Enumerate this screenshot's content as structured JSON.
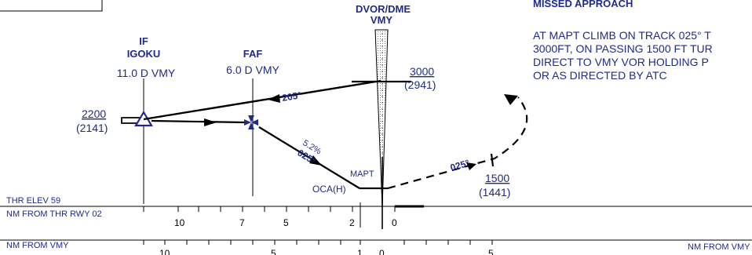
{
  "fixes": {
    "if": {
      "type": "IF",
      "name": "IGOKU",
      "dist": "11.0 D VMY"
    },
    "faf": {
      "type": "FAF",
      "dist": "6.0 D VMY"
    },
    "vor": {
      "line1": "DVOR/DME",
      "line2": "VMY"
    },
    "mapt": "MAPT",
    "oca": "OCA(H)"
  },
  "altitudes": {
    "if_alt": "2200",
    "if_hgt": "(2141)",
    "vor_alt": "3000",
    "vor_hgt": "(2941)",
    "ma_alt": "1500",
    "ma_hgt": "(1441)"
  },
  "tracks": {
    "outbound": "205°",
    "final": "025°",
    "gradient": "5.2%",
    "missed": "025°"
  },
  "missed_approach": {
    "title": "MISSED APPROACH",
    "lines": [
      "AT MAPT CLIMB ON TRACK 025° T",
      "3000FT, ON PASSING 1500 FT TUR",
      "DIRECT TO  VMY VOR HOLDING P",
      "OR AS DIRECTED BY ATC"
    ]
  },
  "scales": {
    "thr_elev": "THR ELEV 59",
    "thr_label": "NM FROM THR RWY 02",
    "thr_ticks": [
      "10",
      "7",
      "5",
      "2",
      "0"
    ],
    "vmy_label": "NM FROM VMY",
    "vmy_label_right": "NM FROM VMY",
    "vmy_ticks": [
      "10",
      "5",
      "1",
      "0",
      "5"
    ]
  }
}
